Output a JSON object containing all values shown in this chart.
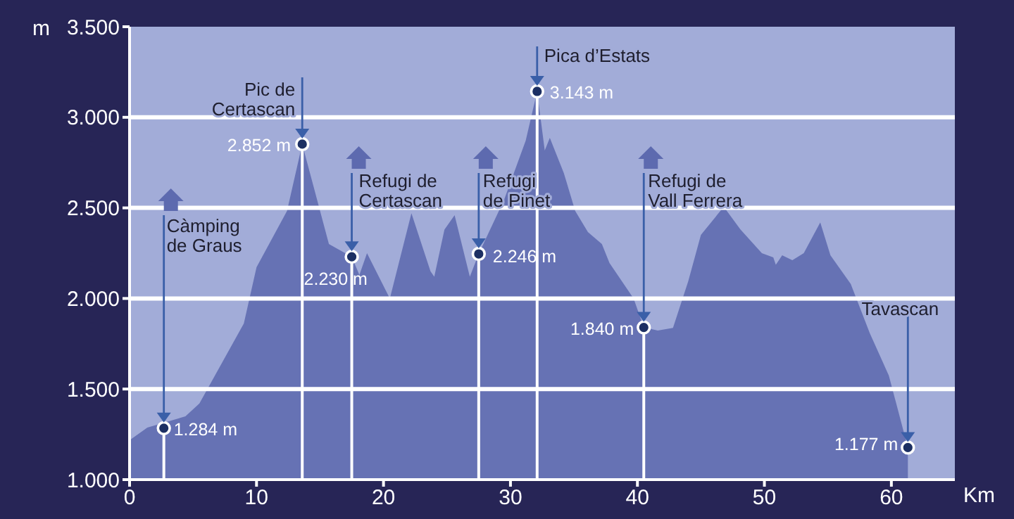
{
  "chart_data": {
    "type": "area",
    "xlabel": "Km",
    "ylabel": "m",
    "xlim": [
      0,
      65
    ],
    "xticks": [
      0,
      10,
      20,
      30,
      40,
      50,
      60
    ],
    "ylim": [
      1000,
      3500
    ],
    "yticks": [
      {
        "value": 1000,
        "label": "1.000"
      },
      {
        "value": 1500,
        "label": "1.500"
      },
      {
        "value": 2000,
        "label": "2.000"
      },
      {
        "value": 2500,
        "label": "2.500"
      },
      {
        "value": 3000,
        "label": "3.000"
      },
      {
        "value": 3500,
        "label": "3.500"
      }
    ],
    "grid": "y",
    "series": [
      {
        "color": "#6672b4",
        "x": [
          0,
          1.4,
          4.4,
          5.5,
          9.0,
          10,
          12.4,
          13.6,
          15.7,
          17.5,
          18.1,
          18.7,
          20.5,
          22.2,
          23.7,
          24,
          24.8,
          25.6,
          26.8,
          27.5,
          29.5,
          31.2,
          32.1,
          32.7,
          33.1,
          34.2,
          35.1,
          36.1,
          37.2,
          37.8,
          39.7,
          40.5,
          41.6,
          42.8,
          44,
          45,
          46.8,
          48.1,
          49.8,
          50.7,
          50.9,
          51.4,
          52.2,
          53.1,
          54.4,
          55.2,
          56.8,
          58.3,
          59.8,
          61.3
        ],
        "values": [
          1217,
          1287,
          1349,
          1420,
          1862,
          2172,
          2483,
          2852,
          2300,
          2230,
          2130,
          2250,
          2000,
          2470,
          2150,
          2120,
          2380,
          2460,
          2120,
          2246,
          2545,
          2871,
          3143,
          2817,
          2887,
          2693,
          2483,
          2366,
          2300,
          2196,
          2000,
          1840,
          1823,
          1838,
          2095,
          2351,
          2506,
          2382,
          2250,
          2227,
          2186,
          2238,
          2211,
          2250,
          2420,
          2238,
          2080,
          1808,
          1575,
          1177
        ]
      },
      {
        "type": "scatter",
        "color": "#1c2f63",
        "marker": "circle",
        "x": [
          2.7,
          13.6,
          17.5,
          27.5,
          32.1,
          40.5,
          61.3
        ],
        "values": [
          1284,
          2852,
          2230,
          2246,
          3143,
          1840,
          1177
        ],
        "value_labels": [
          "1.284 m",
          "2.852 m",
          "2.230 m",
          "2.246 m",
          "3.143 m",
          "1.840 m",
          "1.177 m"
        ]
      }
    ],
    "ref_lines": [
      {
        "axis": "x",
        "value": 2.7,
        "color": "#ffffff"
      },
      {
        "axis": "x",
        "value": 13.6,
        "color": "#ffffff"
      },
      {
        "axis": "x",
        "value": 17.5,
        "color": "#ffffff"
      },
      {
        "axis": "x",
        "value": 27.5,
        "color": "#ffffff"
      },
      {
        "axis": "x",
        "value": 32.1,
        "color": "#ffffff"
      },
      {
        "axis": "x",
        "value": 40.5,
        "color": "#ffffff"
      }
    ],
    "annotations": [
      "Càmping\nde Graus",
      {
        "text": "Pic de\nCertascan",
        "x": 13.6,
        "y": 2852
      },
      {
        "text": "Refugi de\nCertascan",
        "x": 17.5,
        "y": 2230
      },
      {
        "text": "Refugi\nde Pinet",
        "x": 27.5,
        "y": 2246
      },
      {
        "text": "Pica d’Estats",
        "x": 32.1,
        "y": 3143
      },
      "Refugi de\nVall Ferrera",
      "Tavascan"
    ]
  }
}
